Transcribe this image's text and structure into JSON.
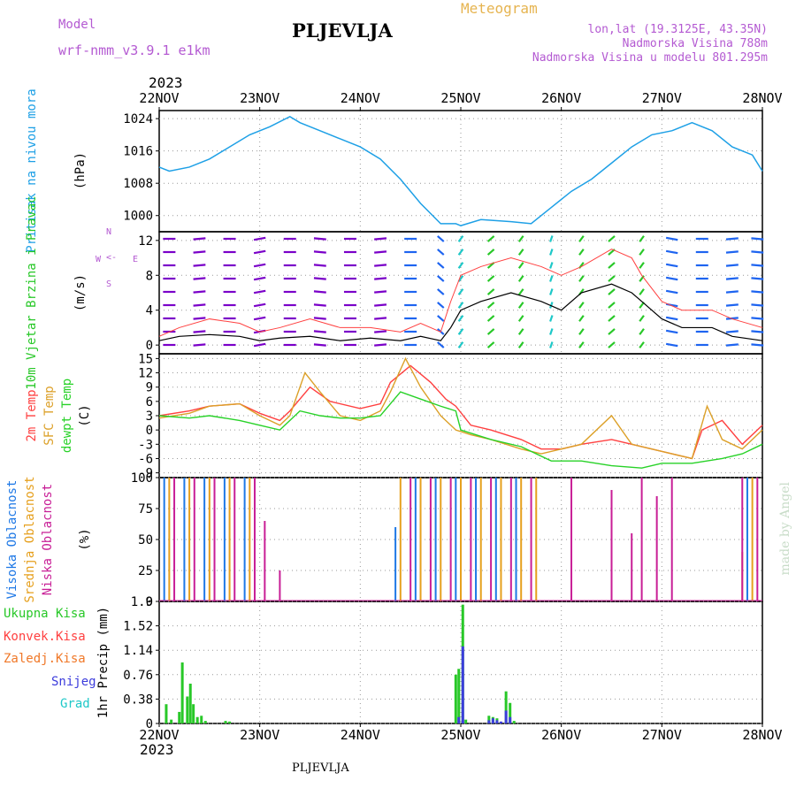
{
  "header": {
    "model_label": "Model",
    "model_name": "wrf-nmm_v3.9.1 e1km",
    "station": "PLJEVLJA",
    "app_title": "Meteogram",
    "lonlat": "lon,lat (19.3125E, 43.35N)",
    "altitude": "Nadmorska Visina 788m",
    "model_altitude": "Nadmorska Visina u modelu 801.295m",
    "year_top": "2023",
    "year_bottom": "2023",
    "footer_station": "PLJEVLJA",
    "watermark": "made by Angel"
  },
  "colors": {
    "pressure": "#1ea0e6",
    "wind_slow": "#7a00c8",
    "wind_mid": "#1e64f0",
    "wind_fast": "#1ec8c8",
    "wind_gale": "#28c828",
    "wind_gust_marker": "#ff4040",
    "temp2m": "#ff4040",
    "sfc_temp": "#dca028",
    "dewpoint": "#28d228",
    "high_cloud": "#1e78e6",
    "mid_cloud": "#e6a01e",
    "low_cloud": "#c81e96",
    "precip_total": "#28c828",
    "precip_snow": "#3c3cdc",
    "header_purple": "#b45ad2",
    "header_gold": "#e6b450"
  },
  "chart_data": [
    {
      "type": "line",
      "panel": "pressure",
      "ylabel": "Pritisak na nivou mora",
      "unit": "(hPa)",
      "yticks": [
        "1000",
        "1008",
        "1016",
        "1024"
      ],
      "ylim": [
        996,
        1026
      ],
      "x_dates": [
        "22NOV",
        "23NOV",
        "24NOV",
        "25NOV",
        "26NOV",
        "27NOV",
        "28NOV"
      ],
      "x_days": [
        0,
        1,
        2,
        3,
        4,
        5,
        6
      ],
      "grid": true,
      "series": [
        {
          "x": [
            0,
            0.1,
            0.3,
            0.5,
            0.7,
            0.9,
            1.1,
            1.3,
            1.4,
            1.6,
            1.8,
            2.0,
            2.2,
            2.4,
            2.6,
            2.8,
            2.95,
            3.0,
            3.2,
            3.5,
            3.7,
            3.9,
            4.1,
            4.3,
            4.5,
            4.7,
            4.9,
            5.1,
            5.3,
            5.5,
            5.7,
            5.9,
            6.0
          ],
          "values": [
            1012,
            1011,
            1012,
            1014,
            1017,
            1020,
            1022,
            1024.5,
            1023,
            1021,
            1019,
            1017,
            1014,
            1009,
            1003,
            998,
            998,
            997.5,
            999,
            998.5,
            998,
            1002,
            1006,
            1009,
            1013,
            1017,
            1020,
            1021,
            1023,
            1021,
            1017,
            1015,
            1011
          ]
        }
      ]
    },
    {
      "type": "line",
      "panel": "wind",
      "ylabel": "10m Vjetar Brzina i Pravac",
      "unit": "(m/s)",
      "compass": [
        "N",
        "<-",
        "E",
        "W",
        "S"
      ],
      "yticks": [
        "0",
        "4",
        "8",
        "12"
      ],
      "ylim": [
        -1,
        13
      ],
      "grid": true,
      "series": [
        {
          "name": "speed",
          "x": [
            0.0,
            0.2,
            0.5,
            0.8,
            1.0,
            1.2,
            1.5,
            1.8,
            2.1,
            2.4,
            2.6,
            2.8,
            2.9,
            3.0,
            3.2,
            3.5,
            3.8,
            4.0,
            4.2,
            4.5,
            4.7,
            4.8,
            5.0,
            5.2,
            5.5,
            5.7,
            6.0
          ],
          "values": [
            0.5,
            1,
            1.2,
            1,
            0.5,
            0.8,
            1,
            0.5,
            0.8,
            0.5,
            1,
            0.5,
            2,
            4,
            5,
            6,
            5,
            4,
            6,
            7,
            6,
            5,
            3,
            2,
            2,
            1,
            0.5
          ]
        },
        {
          "name": "gust",
          "x": [
            0.0,
            0.2,
            0.5,
            0.8,
            1.0,
            1.2,
            1.5,
            1.8,
            2.1,
            2.4,
            2.6,
            2.8,
            2.9,
            3.0,
            3.2,
            3.5,
            3.8,
            4.0,
            4.2,
            4.5,
            4.7,
            4.8,
            5.0,
            5.2,
            5.5,
            5.7,
            6.0
          ],
          "values": [
            1,
            2,
            3,
            2.5,
            1.5,
            2,
            3,
            2,
            2,
            1.5,
            2.5,
            1.5,
            5,
            8,
            9,
            10,
            9,
            8,
            9,
            11,
            10,
            8,
            5,
            4,
            4,
            3,
            2
          ]
        }
      ],
      "barbs": [
        {
          "x": 0.1,
          "speed": 1,
          "dir": 90
        },
        {
          "x": 0.4,
          "speed": 1,
          "dir": 80
        },
        {
          "x": 0.7,
          "speed": 1.5,
          "dir": 90
        },
        {
          "x": 1.0,
          "speed": 1,
          "dir": 70
        },
        {
          "x": 1.3,
          "speed": 1,
          "dir": 90
        },
        {
          "x": 1.6,
          "speed": 1.5,
          "dir": 100
        },
        {
          "x": 1.9,
          "speed": 1,
          "dir": 90
        },
        {
          "x": 2.2,
          "speed": 1,
          "dir": 80
        },
        {
          "x": 2.5,
          "speed": 2,
          "dir": 90
        },
        {
          "x": 2.8,
          "speed": 3,
          "dir": 150
        },
        {
          "x": 3.0,
          "speed": 6,
          "dir": 200
        },
        {
          "x": 3.3,
          "speed": 8,
          "dir": 210
        },
        {
          "x": 3.6,
          "speed": 9,
          "dir": 200
        },
        {
          "x": 3.9,
          "speed": 7,
          "dir": 190
        },
        {
          "x": 4.2,
          "speed": 8,
          "dir": 200
        },
        {
          "x": 4.5,
          "speed": 10,
          "dir": 210
        },
        {
          "x": 4.8,
          "speed": 8,
          "dir": 200
        },
        {
          "x": 5.1,
          "speed": 3,
          "dir": 110
        },
        {
          "x": 5.4,
          "speed": 2,
          "dir": 90
        },
        {
          "x": 5.7,
          "speed": 2,
          "dir": 80
        },
        {
          "x": 5.95,
          "speed": 3,
          "dir": 100
        }
      ]
    },
    {
      "type": "line",
      "panel": "temperature",
      "ylabels": [
        "2m Temp",
        "SFC Temp",
        "dewpt Temp"
      ],
      "unit": "(C)",
      "yticks": [
        "-9",
        "-6",
        "-3",
        "0",
        "3",
        "6",
        "9",
        "12",
        "15"
      ],
      "ylim": [
        -10,
        16
      ],
      "grid": true,
      "series": [
        {
          "name": "2m Temp",
          "x": [
            0,
            0.3,
            0.5,
            0.8,
            1.0,
            1.2,
            1.3,
            1.5,
            1.7,
            2.0,
            2.2,
            2.3,
            2.5,
            2.7,
            2.85,
            2.95,
            3.1,
            3.3,
            3.6,
            3.8,
            4.0,
            4.2,
            4.5,
            4.7,
            4.9,
            5.1,
            5.3,
            5.4,
            5.6,
            5.8,
            6.0
          ],
          "values": [
            3,
            4,
            5,
            5.5,
            3.5,
            2,
            4,
            9,
            6,
            4.5,
            5.5,
            10,
            13.5,
            10,
            6.5,
            5,
            1,
            0,
            -2,
            -4,
            -4,
            -3,
            -2,
            -3,
            -4,
            -5,
            -6,
            0,
            2,
            -3,
            1
          ]
        },
        {
          "name": "SFC Temp",
          "x": [
            0,
            0.3,
            0.5,
            0.8,
            1.0,
            1.2,
            1.3,
            1.45,
            1.6,
            1.8,
            2.0,
            2.2,
            2.3,
            2.45,
            2.6,
            2.8,
            2.95,
            3.1,
            3.3,
            3.6,
            3.8,
            4.0,
            4.2,
            4.5,
            4.7,
            4.9,
            5.1,
            5.3,
            5.45,
            5.6,
            5.8,
            6.0
          ],
          "values": [
            2.5,
            3.5,
            5,
            5.5,
            3,
            1,
            3,
            12,
            8,
            3,
            2,
            4,
            8,
            15,
            9,
            3,
            0,
            -1,
            -2,
            -4,
            -5,
            -4,
            -3,
            3,
            -3,
            -4,
            -5,
            -6,
            5,
            -2,
            -4,
            0
          ]
        },
        {
          "name": "dewpt Temp",
          "x": [
            0,
            0.3,
            0.5,
            0.8,
            1.0,
            1.2,
            1.4,
            1.6,
            1.8,
            2.0,
            2.2,
            2.4,
            2.6,
            2.8,
            2.95,
            3.0,
            3.3,
            3.6,
            3.9,
            4.2,
            4.5,
            4.8,
            5.0,
            5.3,
            5.6,
            5.8,
            6.0
          ],
          "values": [
            3,
            2.5,
            3,
            2,
            1,
            0,
            4,
            3,
            2.5,
            2.5,
            3,
            8,
            6.5,
            5,
            4,
            0,
            -2,
            -3.5,
            -6.5,
            -6.5,
            -7.5,
            -8,
            -7,
            -7,
            -6,
            -5,
            -3
          ]
        }
      ]
    },
    {
      "type": "bar",
      "panel": "clouds",
      "ylabels": [
        "Visoka Oblacnost",
        "Srednja Oblacnost",
        "Niska Oblacnost"
      ],
      "unit": "(%)",
      "yticks": [
        "0",
        "25",
        "50",
        "75",
        "100"
      ],
      "ylim": [
        0,
        100
      ],
      "grid": true,
      "series": [
        {
          "name": "Visoka Oblacnost",
          "x": [
            0.05,
            0.25,
            0.45,
            0.65,
            0.85,
            2.35,
            2.55,
            2.75,
            2.95,
            3.15,
            3.35,
            3.55,
            5.85
          ],
          "values": [
            100,
            100,
            100,
            100,
            100,
            60,
            100,
            100,
            100,
            100,
            100,
            100,
            100
          ]
        },
        {
          "name": "Srednja Oblacnost",
          "x": [
            0.1,
            0.3,
            0.5,
            0.7,
            0.9,
            2.4,
            2.6,
            2.8,
            3.0,
            3.2,
            3.4,
            3.6,
            3.75,
            5.8,
            5.9
          ],
          "values": [
            100,
            100,
            100,
            100,
            100,
            100,
            100,
            100,
            100,
            100,
            100,
            100,
            100,
            40,
            100
          ]
        },
        {
          "name": "Niska Oblacnost",
          "x": [
            0.15,
            0.35,
            0.55,
            0.75,
            0.95,
            1.05,
            1.2,
            2.5,
            2.7,
            2.9,
            3.1,
            3.3,
            3.5,
            3.7,
            4.1,
            4.5,
            4.7,
            4.8,
            4.95,
            5.1,
            5.8,
            5.95
          ],
          "values": [
            100,
            100,
            100,
            100,
            100,
            65,
            25,
            100,
            100,
            100,
            100,
            100,
            100,
            100,
            100,
            90,
            55,
            100,
            85,
            100,
            100,
            100
          ]
        }
      ]
    },
    {
      "type": "bar",
      "panel": "precipitation",
      "ylabels": [
        "Ukupna Kisa",
        "Konvek.Kisa",
        "Zaledj.Kisa",
        "Snijeg",
        "Grad"
      ],
      "ylabel": "1hr Precip",
      "unit": "(mm)",
      "yticks": [
        "0",
        "0.38",
        "0.76",
        "1.14",
        "1.52",
        "1.9"
      ],
      "ylim": [
        0,
        1.9
      ],
      "grid": true,
      "series": [
        {
          "name": "Ukupna Kisa",
          "x": [
            0.07,
            0.12,
            0.2,
            0.23,
            0.28,
            0.31,
            0.34,
            0.38,
            0.42,
            0.46,
            0.66,
            0.7,
            2.95,
            2.98,
            3.02,
            3.05,
            3.28,
            3.32,
            3.36,
            3.45,
            3.49,
            3.53
          ],
          "values": [
            0.3,
            0.06,
            0.18,
            0.95,
            0.42,
            0.62,
            0.3,
            0.1,
            0.12,
            0.04,
            0.04,
            0.03,
            0.76,
            0.85,
            1.85,
            0.06,
            0.12,
            0.1,
            0.08,
            0.5,
            0.32,
            0.04
          ]
        },
        {
          "name": "Snijeg",
          "x": [
            2.98,
            3.02,
            3.28,
            3.32,
            3.36,
            3.4,
            3.45,
            3.49
          ],
          "values": [
            0.1,
            1.2,
            0.05,
            0.08,
            0.05,
            0.03,
            0.2,
            0.1
          ]
        }
      ]
    }
  ]
}
